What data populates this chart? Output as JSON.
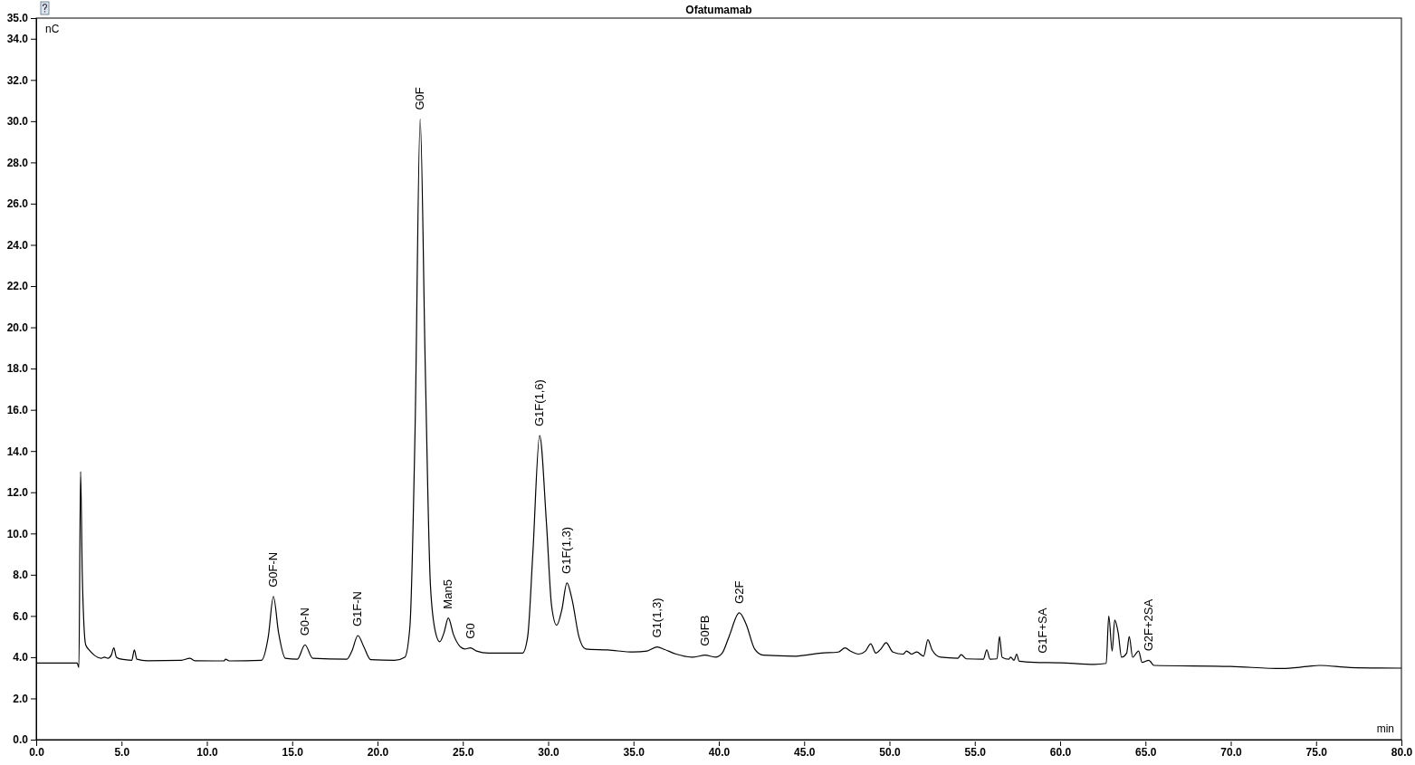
{
  "chart_data": {
    "type": "line",
    "title": "Ofatumamab",
    "xlabel": "min",
    "ylabel": "nC",
    "xlim": [
      0,
      80
    ],
    "ylim": [
      0,
      35
    ],
    "xticks": [
      {
        "value": 0,
        "label": "0.0"
      },
      {
        "value": 5,
        "label": "5.0"
      },
      {
        "value": 10,
        "label": "10.0"
      },
      {
        "value": 15,
        "label": "15.0"
      },
      {
        "value": 20,
        "label": "20.0"
      },
      {
        "value": 25,
        "label": "25.0"
      },
      {
        "value": 30,
        "label": "30.0"
      },
      {
        "value": 35,
        "label": "35.0"
      },
      {
        "value": 40,
        "label": "40.0"
      },
      {
        "value": 45,
        "label": "45.0"
      },
      {
        "value": 50,
        "label": "50.0"
      },
      {
        "value": 55,
        "label": "55.0"
      },
      {
        "value": 60,
        "label": "60.0"
      },
      {
        "value": 65,
        "label": "65.0"
      },
      {
        "value": 70,
        "label": "70.0"
      },
      {
        "value": 75,
        "label": "75.0"
      },
      {
        "value": 80,
        "label": "80.0"
      }
    ],
    "yticks": [
      {
        "value": 0,
        "label": "0.0"
      },
      {
        "value": 2,
        "label": "2.0"
      },
      {
        "value": 4,
        "label": "4.0"
      },
      {
        "value": 6,
        "label": "6.0"
      },
      {
        "value": 8,
        "label": "8.0"
      },
      {
        "value": 10,
        "label": "10.0"
      },
      {
        "value": 12,
        "label": "12.0"
      },
      {
        "value": 14,
        "label": "14.0"
      },
      {
        "value": 16,
        "label": "16.0"
      },
      {
        "value": 18,
        "label": "18.0"
      },
      {
        "value": 20,
        "label": "20.0"
      },
      {
        "value": 22,
        "label": "22.0"
      },
      {
        "value": 24,
        "label": "24.0"
      },
      {
        "value": 26,
        "label": "26.0"
      },
      {
        "value": 28,
        "label": "28.0"
      },
      {
        "value": 30,
        "label": "30.0"
      },
      {
        "value": 32,
        "label": "32.0"
      },
      {
        "value": 34,
        "label": "34.0"
      },
      {
        "value": 35,
        "label": "35.0"
      }
    ],
    "grid": false,
    "marker": "none",
    "line_style": "solid",
    "series": [
      {
        "color": "#000000",
        "x": [
          0,
          2.4,
          2.5,
          2.6,
          2.7,
          2.8,
          2.9,
          3.1,
          3.4,
          3.8,
          4.0,
          4.2,
          4.4,
          4.55,
          4.7,
          5.0,
          5.6,
          5.75,
          5.9,
          6.5,
          8.5,
          9.0,
          9.3,
          11.0,
          11.1,
          11.3,
          13.2,
          13.6,
          13.9,
          14.2,
          14.6,
          15.3,
          15.75,
          16.2,
          18.2,
          18.5,
          18.85,
          19.2,
          19.6,
          21.0,
          21.6,
          21.9,
          22.2,
          22.5,
          22.8,
          23.1,
          23.4,
          23.65,
          23.9,
          24.15,
          24.45,
          24.8,
          25.1,
          25.45,
          25.8,
          26.5,
          28.5,
          28.8,
          29.1,
          29.5,
          29.9,
          30.2,
          30.5,
          30.8,
          31.1,
          31.4,
          31.8,
          32.2,
          33.5,
          35.0,
          35.8,
          36.4,
          36.8,
          37.5,
          38.5,
          39.2,
          39.8,
          40.2,
          40.6,
          41.2,
          41.6,
          42.1,
          42.6,
          44.5,
          46.0,
          47.0,
          47.4,
          47.7,
          48.2,
          48.6,
          48.9,
          49.2,
          49.5,
          49.8,
          50.2,
          50.8,
          51.0,
          51.3,
          51.6,
          52.0,
          52.25,
          52.5,
          53.0,
          54.0,
          54.2,
          54.5,
          55.5,
          55.7,
          55.9,
          56.3,
          56.45,
          56.6,
          57.0,
          57.1,
          57.3,
          57.45,
          57.6,
          58.5,
          60.0,
          62.0,
          62.7,
          62.85,
          63.05,
          63.2,
          63.4,
          63.6,
          63.9,
          64.05,
          64.25,
          64.6,
          64.8,
          65.2,
          65.5,
          70.0,
          73.0,
          74.5,
          75.2,
          77.0,
          80.0
        ],
        "values": [
          3.72,
          3.72,
          3.5,
          13.0,
          8,
          5.5,
          4.6,
          4.35,
          4.1,
          3.95,
          4.0,
          3.95,
          4.1,
          4.45,
          4.0,
          3.9,
          3.85,
          4.35,
          3.9,
          3.83,
          3.85,
          3.95,
          3.83,
          3.82,
          3.9,
          3.82,
          3.85,
          5.0,
          6.95,
          5.2,
          3.95,
          3.9,
          4.6,
          3.95,
          3.9,
          4.3,
          5.05,
          4.5,
          3.88,
          3.85,
          4.0,
          5.5,
          15,
          30.1,
          18,
          7.5,
          5.2,
          4.75,
          5.2,
          5.9,
          5.1,
          4.55,
          4.4,
          4.45,
          4.3,
          4.2,
          4.2,
          5.0,
          9.0,
          14.75,
          10.5,
          6.5,
          5.55,
          6.3,
          7.6,
          6.8,
          5.0,
          4.4,
          4.35,
          4.25,
          4.3,
          4.5,
          4.38,
          4.15,
          4.0,
          4.1,
          4.0,
          4.2,
          5.0,
          6.15,
          5.6,
          4.4,
          4.1,
          4.05,
          4.2,
          4.25,
          4.45,
          4.3,
          4.15,
          4.3,
          4.65,
          4.2,
          4.4,
          4.7,
          4.25,
          4.15,
          4.3,
          4.15,
          4.25,
          4.05,
          4.85,
          4.35,
          4.0,
          3.95,
          4.12,
          3.92,
          3.9,
          4.35,
          3.9,
          3.92,
          5.0,
          4.0,
          3.9,
          4.0,
          3.85,
          4.15,
          3.8,
          3.75,
          3.73,
          3.65,
          3.7,
          6.0,
          4.3,
          5.8,
          5.2,
          4.0,
          4.2,
          5.0,
          4.0,
          4.3,
          3.75,
          3.85,
          3.6,
          3.55,
          3.45,
          3.55,
          3.6,
          3.5,
          3.47
        ]
      }
    ],
    "annotations": [
      {
        "text": "G0F-N",
        "x": 13.9,
        "y": 6.95
      },
      {
        "text": "G0-N",
        "x": 15.75,
        "y": 4.6
      },
      {
        "text": "G1F-N",
        "x": 18.85,
        "y": 5.05
      },
      {
        "text": "G0F",
        "x": 22.5,
        "y": 30.1
      },
      {
        "text": "Man5",
        "x": 24.15,
        "y": 5.9
      },
      {
        "text": "G0",
        "x": 25.45,
        "y": 4.45
      },
      {
        "text": "G1F(1,6)",
        "x": 29.5,
        "y": 14.75
      },
      {
        "text": "G1F(1,3)",
        "x": 31.1,
        "y": 7.6
      },
      {
        "text": "G1(1,3)",
        "x": 36.4,
        "y": 4.5
      },
      {
        "text": "G0FB",
        "x": 39.2,
        "y": 4.1
      },
      {
        "text": "G2F",
        "x": 41.2,
        "y": 6.15
      },
      {
        "text": "G1F+SA",
        "x": 59.0,
        "y": 3.74
      },
      {
        "text": "G2F+2SA",
        "x": 65.2,
        "y": 3.85
      }
    ]
  }
}
